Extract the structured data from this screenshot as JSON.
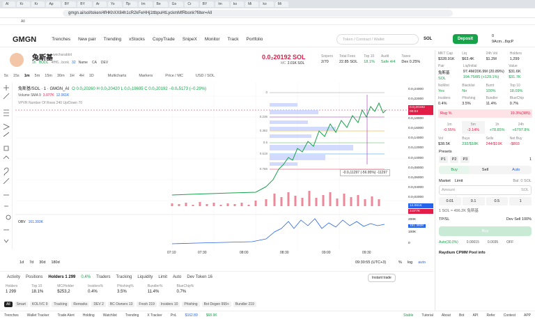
{
  "browser": {
    "tabs": [
      "Al",
      "Kr",
      "Kr",
      "Ар",
      "BY",
      "BY",
      "Ar",
      "Yo",
      "Пр",
      "Im",
      "Be",
      "Go",
      "Cr",
      "BY",
      "Im",
      "ko",
      "Mi",
      "ko",
      "Mi"
    ],
    "url": "gmgn.ai/sol/token/4fHKhXX84h1cR2kFeHHj1ttbpuHtLyckmMfRbonk?filter=All",
    "bookmarks": [
      "All"
    ]
  },
  "nav": {
    "logo": "GMGN",
    "links": [
      "Trenches",
      "New pair",
      "Trending",
      "xStocks",
      "CopyTrade",
      "SnipeX",
      "Monitor",
      "Track",
      "Portfolio"
    ],
    "search": "Token / Contract / Wallet",
    "chain": "SOL",
    "deposit": "Deposit",
    "balance": "0",
    "wallet": "9Acm...8qcP"
  },
  "token": {
    "name": "兔斯基",
    "handle": "wecharabbit",
    "age": "1h",
    "tag": "HODL",
    "address": "4fH6...bonk",
    "count": "32",
    "links": [
      "Name",
      "CA",
      "DEV"
    ],
    "price": "0.0₂20192 SOL",
    "mc_label": "MC",
    "mc": "2.01K SOL",
    "stats": [
      {
        "label": "Snipers",
        "value": "2/70"
      },
      {
        "label": "Total Fees",
        "value": "22.85 SOL"
      },
      {
        "label": "Top 10",
        "value": "18.1%"
      },
      {
        "label": "Audit",
        "value": "Safe 4/4"
      },
      {
        "label": "Taxes",
        "value": "Dex 0.25%"
      }
    ]
  },
  "chart": {
    "intervals": [
      "5s",
      "15s",
      "1m",
      "5m",
      "15m",
      "30m",
      "1H",
      "4H",
      "1D"
    ],
    "tools": [
      "Multicharts",
      "Markers",
      "Price / MC",
      "USD / SOL"
    ],
    "legend": "兔斯基/SOL · 1 · GMGN_AI",
    "ohlc": "O 0.0₂20260 H 0.0₂20420 L 0.0₂19695 C 0.0₂20192 −0.0₄5173 (−0.29%)",
    "volume": "Volume SMA 9",
    "volume_values": [
      "3.077K",
      "12.061K"
    ],
    "vpvr": "VPVR Number Of Rows 240 Up/Down 70",
    "fib": [
      "0",
      "0.236",
      "0.382",
      "0.5",
      "0.618",
      "0.786"
    ],
    "measure": "-0.0₂11297 (-56.95%) -11297",
    "price_axis": [
      "0.0₂24000",
      "0.0₂22000",
      "0.0₂20000",
      "0.0₂18000",
      "0.0₂16000",
      "0.0₂14000",
      "0.0₂12000",
      "0.0₂10000",
      "0.0₂08000",
      "0.0₂06000",
      "0.0₂04000",
      "0.0₂02000"
    ],
    "current_price": "0.0₂20192",
    "countdown": "00:04",
    "volume_axis": [
      "12.061K",
      "3.077K"
    ],
    "obv": "OBV",
    "obv_value": "161.393K",
    "obv_axis": [
      "200K",
      "161.393K",
      "100K",
      "0"
    ],
    "time_axis": [
      "07:10",
      "07:30",
      "08:00",
      "08:30",
      "09:00",
      "09:30"
    ],
    "ranges": [
      "1d",
      "7d",
      "30d",
      "180d"
    ],
    "clock": "09:30:55 (UTC+3)",
    "options": [
      "%",
      "log",
      "auto"
    ]
  },
  "bottom": {
    "tabs": [
      "Activity",
      "Positions",
      "Holders 1 299",
      "0.4%",
      "Traders",
      "Tracking",
      "Liquidity",
      "Limit",
      "Auto",
      "Dev Token 16"
    ],
    "instant": "Instant trade",
    "stats": [
      {
        "label": "Holders",
        "value": "1 299"
      },
      {
        "label": "Top 10",
        "value": "18.1%"
      },
      {
        "label": "MC/Holder",
        "value": "$253,2"
      },
      {
        "label": "Insiders%",
        "value": "0.4%"
      },
      {
        "label": "Phishing%",
        "value": "3.5%"
      },
      {
        "label": "Bundler%",
        "value": "11.4%"
      },
      {
        "label": "BlueChip%",
        "value": "0.7%"
      }
    ],
    "filters": [
      "All",
      "Smart",
      "KOL/VC 9",
      "Tracking",
      "Remarks",
      "DEV 2",
      "BC Owners 13",
      "Fresh 219",
      "Insiders 10",
      "Phishing",
      "Bot Degen 999+",
      "Bundler 219"
    ]
  },
  "panel": {
    "overview": [
      {
        "label": "MKT Cap",
        "value": "$328.91K"
      },
      {
        "label": "Liq",
        "value": "$63.4K"
      },
      {
        "label": "24h Vol",
        "value": "$1.2M"
      },
      {
        "label": "Holders",
        "value": "1,299"
      }
    ],
    "pair": [
      {
        "label": "Pair",
        "value": "兔斯基",
        "sub": "SOL"
      },
      {
        "label": "Liq/Initial",
        "value": "97.4M/206.9M (20.89%)",
        "sub": "194.75/85 (+129.1%)"
      },
      {
        "label": "Value",
        "value": "$31.6K",
        "sub": "$31.7K"
      }
    ],
    "audit": [
      {
        "label": "NoMint",
        "value": "Yes"
      },
      {
        "label": "Blacklist",
        "value": "No"
      },
      {
        "label": "Burnt",
        "value": "100%"
      },
      {
        "label": "Top 10",
        "value": "18.09%"
      }
    ],
    "holders": [
      {
        "label": "Insiders",
        "value": "0.4%"
      },
      {
        "label": "Phishing",
        "value": "3.5%"
      },
      {
        "label": "Bundler",
        "value": "11.4%"
      },
      {
        "label": "BlueChip",
        "value": "0.7%"
      }
    ],
    "rug": [
      {
        "label": "Rug %",
        "value": "19.3%(385)"
      }
    ],
    "periods": [
      {
        "label": "1m",
        "value": "-0.55%"
      },
      {
        "label": "5m",
        "value": "-3.14%"
      },
      {
        "label": "1h",
        "value": "+78.85%"
      },
      {
        "label": "24h",
        "value": "+6797.8%"
      }
    ],
    "flow": [
      {
        "label": "Vol",
        "value": "$38.5K"
      },
      {
        "label": "Buys",
        "value": "232/$18K"
      },
      {
        "label": "Sells",
        "value": "244/$19K"
      },
      {
        "label": "Net Buy",
        "value": "-$803"
      }
    ],
    "presets_label": "Presets",
    "presets": [
      "P1",
      "P2",
      "P3"
    ],
    "preset_count": "1",
    "sides": [
      "Buy",
      "Sell",
      "Auto"
    ],
    "order_types": [
      "Market",
      "Limit"
    ],
    "balance": "Bal: 0 SOL",
    "amount": "Amount",
    "amount_unit": "SOL",
    "amounts": [
      "0.01",
      "0.1",
      "0.5",
      "1"
    ],
    "quote": "1 SOL ≈ 496.2K 兔斯基",
    "options": [
      "TP/SL",
      "Dev Sell 100%"
    ],
    "buy": "Buy",
    "fees": [
      "Auto(30.0%)",
      "0.00015",
      "0.0035",
      "OFF"
    ],
    "pool": "Raydium CPMM Pool info"
  },
  "footer": {
    "left": [
      "Trenches",
      "Wallet Tracker",
      "Trade Alert",
      "Holding",
      "Watchlist",
      "Trending",
      "X Tracker",
      "PnL",
      "$162.89",
      "$68.9K"
    ],
    "right": [
      "Stable",
      "Tutorial",
      "About",
      "Bot",
      "API",
      "Refer",
      "Contest",
      "APP"
    ]
  }
}
